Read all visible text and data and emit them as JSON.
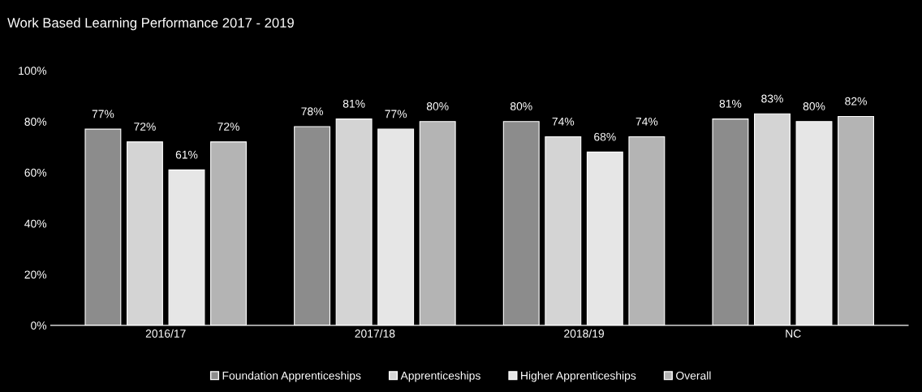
{
  "chart_data": {
    "type": "bar",
    "title": "Work Based Learning Performance 2017 - 2019",
    "categories": [
      "2016/17",
      "2017/18",
      "2018/19",
      "NC"
    ],
    "series": [
      {
        "name": "Foundation Apprenticeships",
        "color": "#8c8c8c",
        "values": [
          77,
          78,
          80,
          81
        ],
        "value_labels": [
          "77%",
          "78%",
          "80%",
          "81%"
        ]
      },
      {
        "name": "Apprenticeships",
        "color": "#d4d4d4",
        "values": [
          72,
          81,
          74,
          83
        ],
        "value_labels": [
          "72%",
          "81%",
          "74%",
          "83%"
        ]
      },
      {
        "name": "Higher Apprenticeships",
        "color": "#e6e6e6",
        "values": [
          61,
          77,
          68,
          80
        ],
        "value_labels": [
          "61%",
          "77%",
          "68%",
          "80%"
        ]
      },
      {
        "name": "Overall",
        "color": "#b4b4b4",
        "values": [
          72,
          80,
          74,
          82
        ],
        "value_labels": [
          "72%",
          "80%",
          "74%",
          "82%"
        ]
      }
    ],
    "ylim": [
      0,
      100
    ],
    "yticks": [
      {
        "value": 0,
        "label": "0%"
      },
      {
        "value": 20,
        "label": "20%"
      },
      {
        "value": 40,
        "label": "40%"
      },
      {
        "value": 60,
        "label": "60%"
      },
      {
        "value": 80,
        "label": "80%"
      },
      {
        "value": 100,
        "label": "100%"
      }
    ],
    "grid": false,
    "legend": "bottom"
  }
}
